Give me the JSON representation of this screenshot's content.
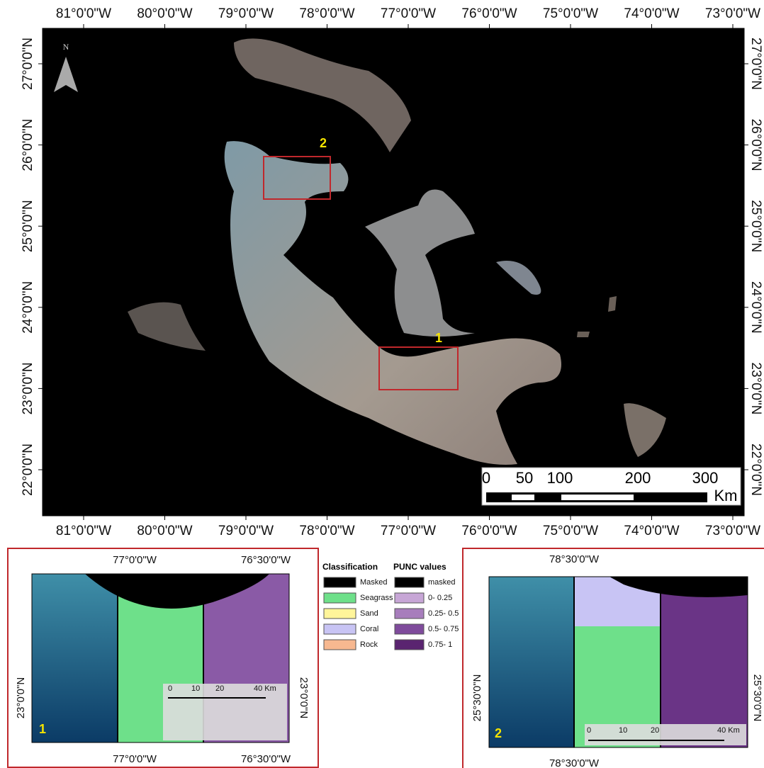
{
  "main_map": {
    "lon_labels": [
      "81°0'0\"W",
      "80°0'0\"W",
      "79°0'0\"W",
      "78°0'0\"W",
      "77°0'0\"W",
      "76°0'0\"W",
      "75°0'0\"W",
      "74°0'0\"W",
      "73°0'0\"W"
    ],
    "lat_labels": [
      "27°0'0\"N",
      "26°0'0\"N",
      "25°0'0\"N",
      "24°0'0\"N",
      "23°0'0\"N",
      "22°0'0\"N"
    ],
    "north": "N",
    "box_labels": [
      "1",
      "2"
    ],
    "scale": {
      "labels": [
        "0",
        "50",
        "100",
        "200",
        "300"
      ],
      "unit": "Km"
    }
  },
  "inset_1": {
    "lon_labels": [
      "77°0'0\"W",
      "76°30'0\"W"
    ],
    "lat_label": "23°0'0\"N",
    "scale": [
      "0",
      "10",
      "20",
      "40 Km"
    ],
    "label": "1"
  },
  "legend": {
    "classification": {
      "title": "Classification",
      "items": [
        {
          "label": "Masked",
          "color": "#000000"
        },
        {
          "label": "Seagrass",
          "color": "#6ee08a"
        },
        {
          "label": "Sand",
          "color": "#fff59a"
        },
        {
          "label": "Coral",
          "color": "#c8c4f4"
        },
        {
          "label": "Rock",
          "color": "#f7b890"
        }
      ]
    },
    "punc": {
      "title": "PUNC values",
      "items": [
        {
          "label": "masked",
          "color": "#000000"
        },
        {
          "label": "0- 0.25",
          "color": "#c7a6d6"
        },
        {
          "label": "0.25- 0.5",
          "color": "#a77dbc"
        },
        {
          "label": "0.5- 0.75",
          "color": "#7f4b9c"
        },
        {
          "label": "0.75- 1",
          "color": "#5a2470"
        }
      ]
    }
  },
  "inset_2": {
    "lon_label": "78°30'0\"W",
    "lat_label": "25°30'0\"N",
    "scale": [
      "0",
      "10",
      "20",
      "40 Km"
    ],
    "label": "2"
  }
}
